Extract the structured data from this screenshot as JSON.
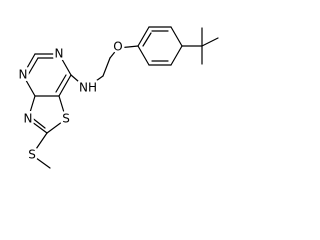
{
  "atoms": {
    "n4": "N",
    "n6": "N",
    "n3": "N",
    "s1": "S",
    "s_me": "S",
    "nh": "NH",
    "o": "O"
  }
}
